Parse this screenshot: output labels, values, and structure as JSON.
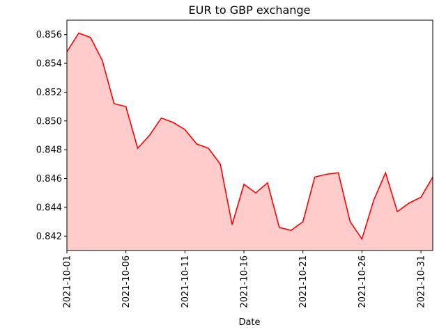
{
  "chart_data": {
    "type": "area",
    "title": "EUR to GBP exchange",
    "xlabel": "Date",
    "ylabel": "",
    "x": [
      "2021-10-01",
      "2021-10-02",
      "2021-10-03",
      "2021-10-04",
      "2021-10-05",
      "2021-10-06",
      "2021-10-07",
      "2021-10-08",
      "2021-10-09",
      "2021-10-10",
      "2021-10-11",
      "2021-10-12",
      "2021-10-13",
      "2021-10-14",
      "2021-10-15",
      "2021-10-16",
      "2021-10-17",
      "2021-10-18",
      "2021-10-19",
      "2021-10-20",
      "2021-10-21",
      "2021-10-22",
      "2021-10-23",
      "2021-10-24",
      "2021-10-25",
      "2021-10-26",
      "2021-10-27",
      "2021-10-28",
      "2021-10-29",
      "2021-10-30",
      "2021-10-31",
      "2021-11-01"
    ],
    "values": [
      0.8548,
      0.8561,
      0.8558,
      0.8542,
      0.8512,
      0.851,
      0.8481,
      0.849,
      0.8502,
      0.8499,
      0.8494,
      0.8484,
      0.8481,
      0.847,
      0.8428,
      0.8456,
      0.845,
      0.8457,
      0.8426,
      0.8424,
      0.843,
      0.8461,
      0.8463,
      0.8464,
      0.843,
      0.8418,
      0.8445,
      0.8464,
      0.8437,
      0.8443,
      0.8447,
      0.8461
    ],
    "xlim": [
      "2021-10-01",
      "2021-11-01"
    ],
    "ylim": [
      0.841,
      0.857
    ],
    "xticks": [
      "2021-10-01",
      "2021-10-06",
      "2021-10-11",
      "2021-10-16",
      "2021-10-21",
      "2021-10-26",
      "2021-10-31"
    ],
    "yticks": [
      "0.842",
      "0.844",
      "0.846",
      "0.848",
      "0.850",
      "0.852",
      "0.854",
      "0.856"
    ],
    "line_color": "#ff0000",
    "fill_color": "#ffcccc",
    "grid": false
  }
}
